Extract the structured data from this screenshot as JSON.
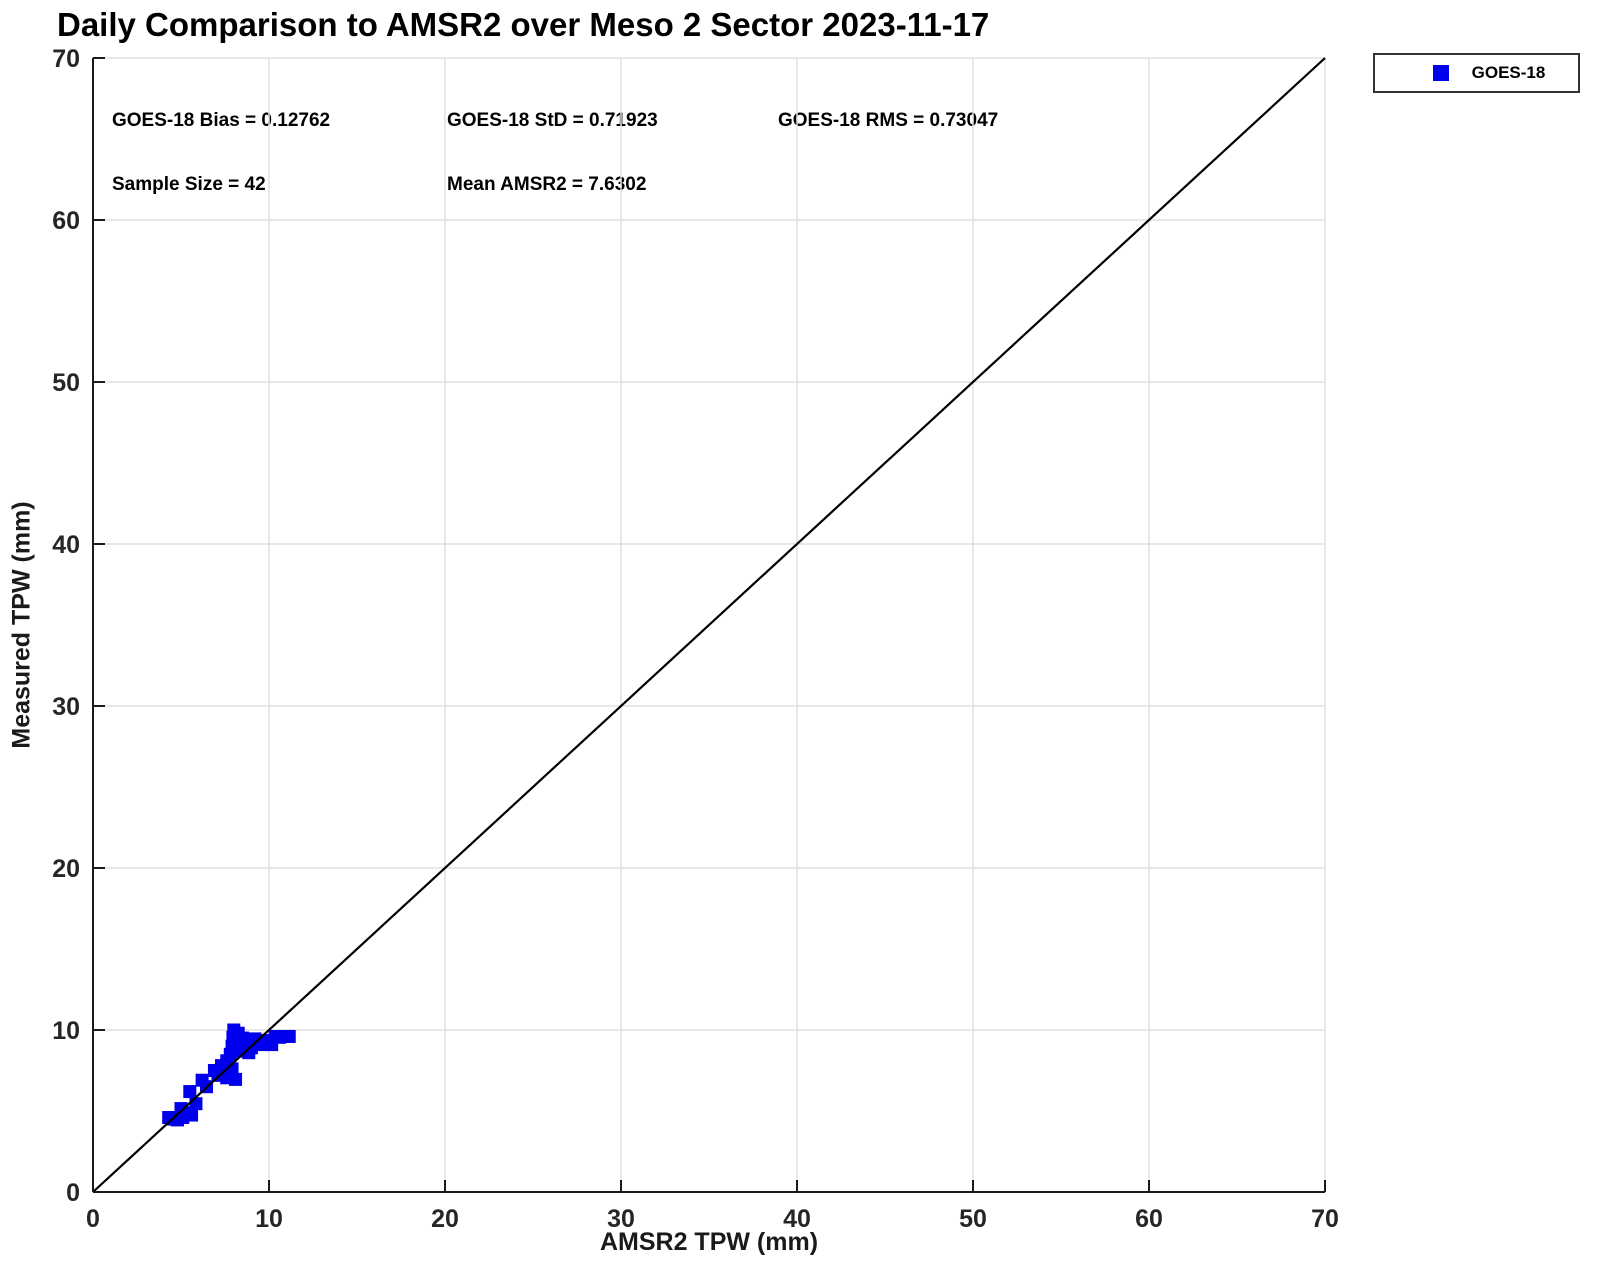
{
  "title": "Daily Comparison to AMSR2 over Meso 2 Sector 2023-11-17",
  "annotations": {
    "bias": "GOES-18 Bias = 0.12762",
    "std": "GOES-18 StD = 0.71923",
    "rms": "GOES-18 RMS = 0.73047",
    "sample_size": "Sample Size = 42",
    "mean_amsr2": "Mean AMSR2 = 7.6302"
  },
  "legend": {
    "position": "top-right-outside",
    "entries": [
      {
        "label": "GOES-18",
        "marker": "filled-square",
        "color": "#0000ee"
      }
    ]
  },
  "colors": {
    "marker": "#0000ee",
    "grid": "#e0e0e0",
    "axis": "#1a1a1a",
    "tick_label": "#262626",
    "reference_line": "#000000"
  },
  "chart_data": {
    "type": "scatter",
    "title": "Daily Comparison to AMSR2 over Meso 2 Sector 2023-11-17",
    "xlabel": "AMSR2 TPW (mm)",
    "ylabel": "Measured TPW (mm)",
    "xlim": [
      0,
      70
    ],
    "ylim": [
      0,
      70
    ],
    "xticks": [
      0,
      10,
      20,
      30,
      40,
      50,
      60,
      70
    ],
    "yticks": [
      0,
      10,
      20,
      30,
      40,
      50,
      60,
      70
    ],
    "grid": true,
    "legend_position": "top-right-outside",
    "reference_line": {
      "x": [
        0,
        70
      ],
      "y": [
        0,
        70
      ],
      "style": "solid",
      "color": "#000000"
    },
    "stats": {
      "bias": 0.12762,
      "std": 0.71923,
      "rms": 0.73047,
      "sample_size": 42,
      "mean_amsr2": 7.6302
    },
    "series": [
      {
        "name": "GOES-18",
        "marker": "filled-square",
        "color": "#0000ee",
        "points": [
          [
            4.3,
            4.6
          ],
          [
            4.55,
            4.5
          ],
          [
            4.8,
            4.45
          ],
          [
            5.1,
            4.6
          ],
          [
            5.35,
            4.9
          ],
          [
            5.6,
            4.75
          ],
          [
            5.0,
            5.15
          ],
          [
            5.85,
            5.45
          ],
          [
            5.5,
            6.2
          ],
          [
            6.2,
            6.9
          ],
          [
            6.45,
            6.5
          ],
          [
            6.9,
            7.5
          ],
          [
            7.1,
            7.2
          ],
          [
            7.6,
            7.05
          ],
          [
            8.1,
            6.95
          ],
          [
            7.3,
            7.8
          ],
          [
            7.6,
            8.1
          ],
          [
            7.9,
            7.6
          ],
          [
            7.8,
            8.5
          ],
          [
            7.9,
            9.0
          ],
          [
            7.95,
            9.55
          ],
          [
            8.0,
            10.0
          ],
          [
            8.1,
            9.2
          ],
          [
            8.15,
            8.7
          ],
          [
            8.25,
            9.8
          ],
          [
            8.3,
            9.35
          ],
          [
            8.4,
            8.9
          ],
          [
            8.5,
            9.5
          ],
          [
            8.6,
            9.1
          ],
          [
            8.7,
            9.3
          ],
          [
            8.85,
            8.6
          ],
          [
            9.0,
            8.9
          ],
          [
            9.2,
            9.45
          ],
          [
            9.4,
            9.2
          ],
          [
            9.6,
            9.1
          ],
          [
            9.75,
            9.35
          ],
          [
            9.95,
            9.2
          ],
          [
            10.15,
            9.1
          ],
          [
            10.35,
            9.6
          ],
          [
            10.6,
            9.55
          ],
          [
            10.85,
            9.6
          ],
          [
            11.15,
            9.6
          ]
        ]
      }
    ]
  }
}
